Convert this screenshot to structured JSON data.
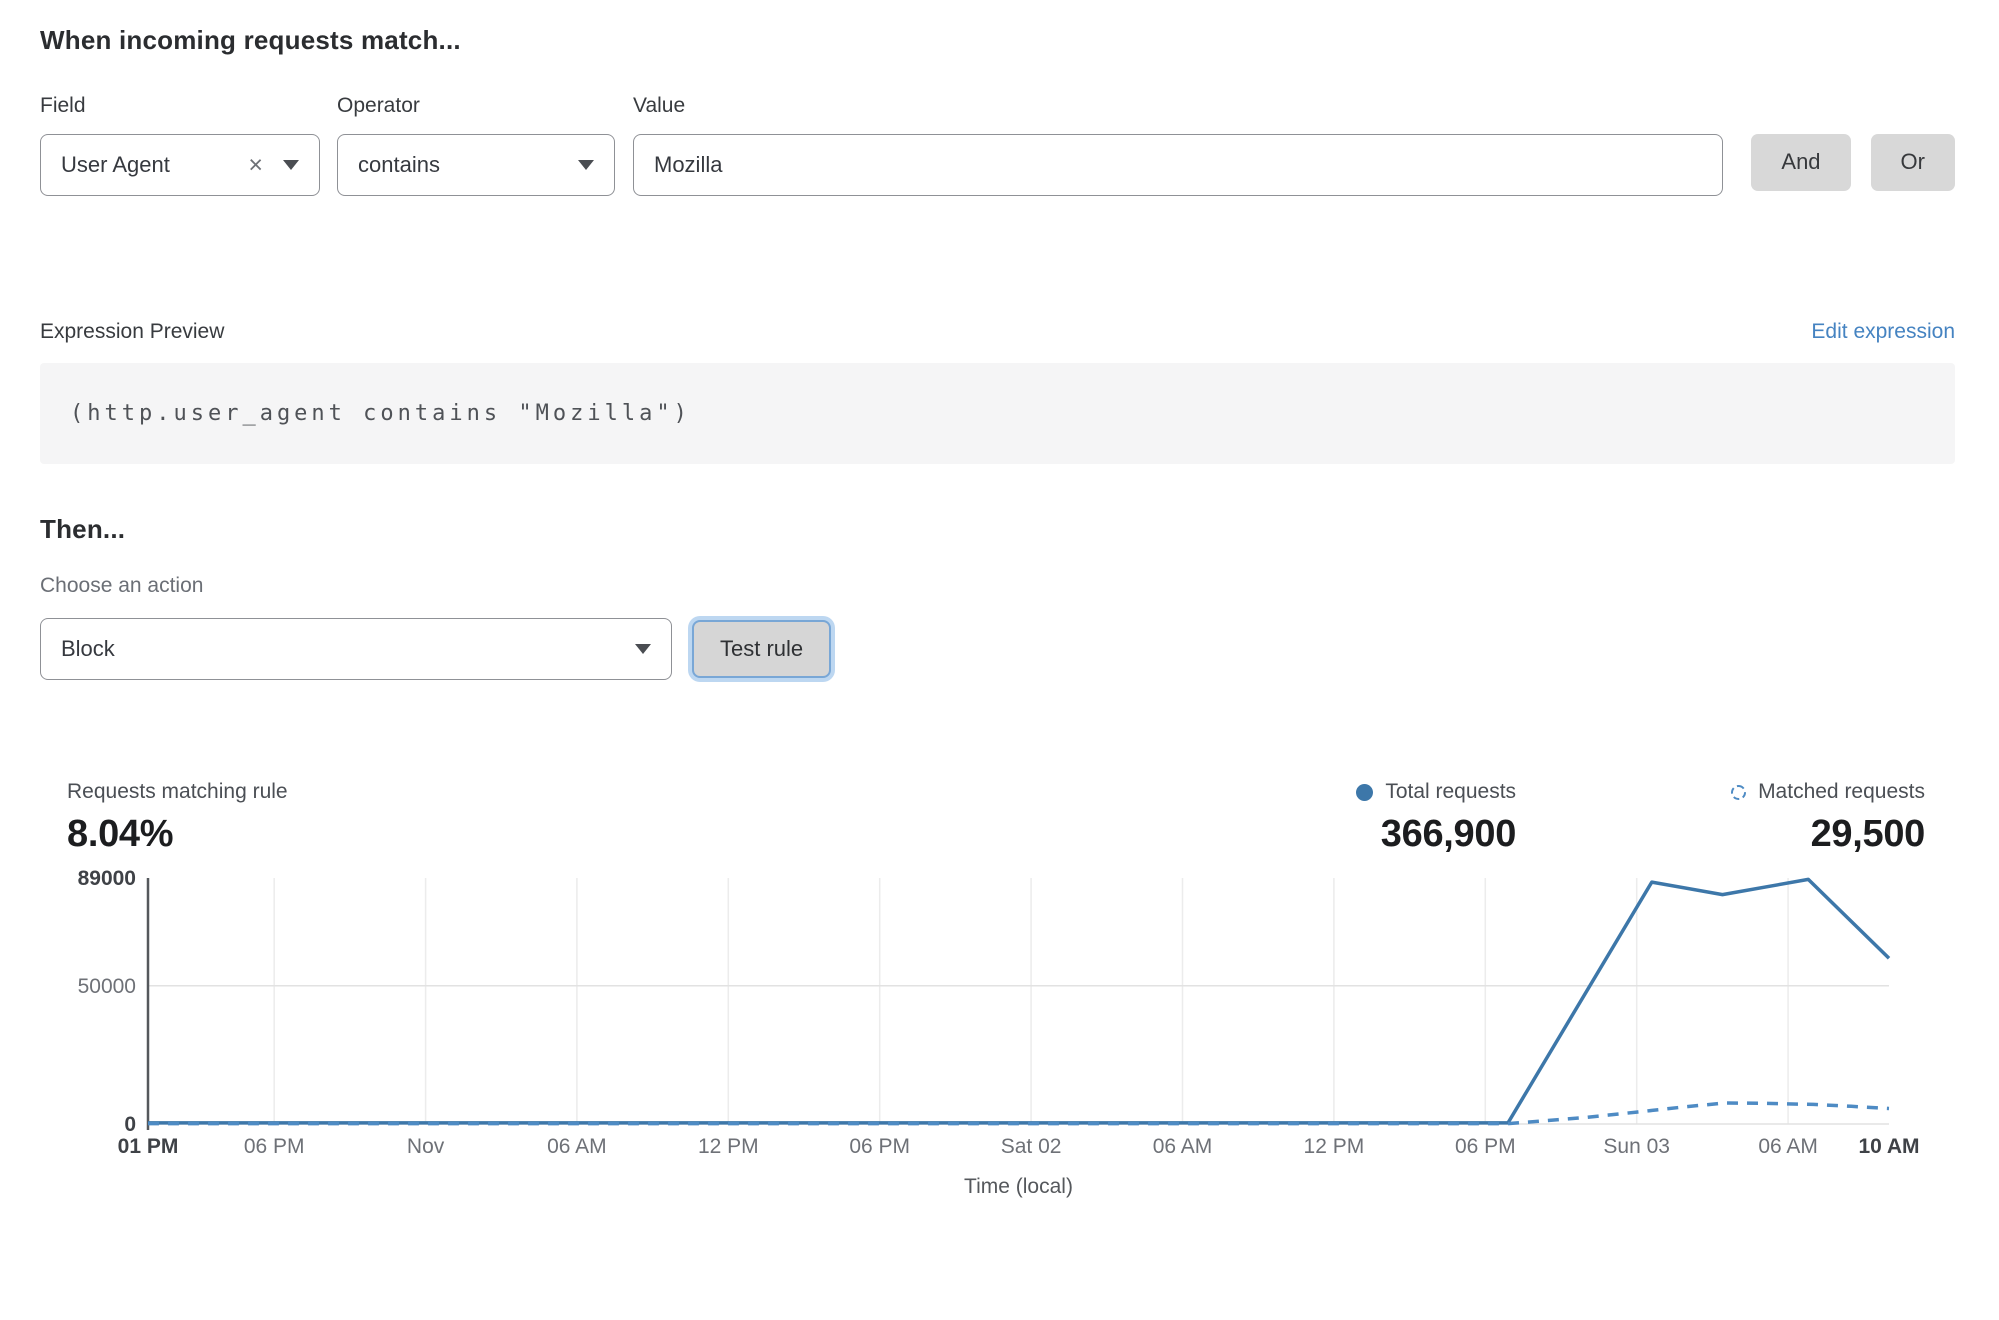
{
  "header": {
    "title": "When incoming requests match..."
  },
  "form": {
    "field_label": "Field",
    "field_value": "User Agent",
    "operator_label": "Operator",
    "operator_value": "contains",
    "value_label": "Value",
    "value_value": "Mozilla",
    "and_button": "And",
    "or_button": "Or"
  },
  "expression": {
    "label": "Expression Preview",
    "edit_link": "Edit expression",
    "code": "(http.user_agent contains \"Mozilla\")"
  },
  "action": {
    "title": "Then...",
    "choose_label": "Choose an action",
    "selected_action": "Block",
    "test_button": "Test rule"
  },
  "stats": {
    "matching_label": "Requests matching rule",
    "matching_value": "8.04%",
    "total_label": "Total requests",
    "total_value": "366,900",
    "matched_label": "Matched requests",
    "matched_value": "29,500"
  },
  "colors": {
    "solid_line": "#3d77a9",
    "dashed_line": "#4e8bc4",
    "link_blue": "#4583c1",
    "grid": "#ececec",
    "grid_major": "#e2e2e2",
    "axis": "#55585c",
    "tick_text": "#6e7177",
    "tick_text_bold": "#3f4247"
  },
  "chart_data": {
    "type": "line",
    "title": "",
    "xlabel": "Time (local)",
    "ylabel": "",
    "ylim": [
      0,
      89000
    ],
    "x_total_hours": 69,
    "legend_position": "above-right",
    "grid": {
      "vertical_at_ticks": true,
      "horizontal_gridlines": [
        50000
      ],
      "baseline": true
    },
    "y_ticks": [
      {
        "value": 0,
        "label": "0",
        "bold": true
      },
      {
        "value": 50000,
        "label": "50000",
        "bold": false
      },
      {
        "value": 89000,
        "label": "89000",
        "bold": true
      }
    ],
    "x_ticks": [
      {
        "hour": 0,
        "label": "01 PM",
        "bold": true
      },
      {
        "hour": 5,
        "label": "06 PM",
        "bold": false
      },
      {
        "hour": 11,
        "label": "Nov",
        "bold": false
      },
      {
        "hour": 17,
        "label": "06 AM",
        "bold": false
      },
      {
        "hour": 23,
        "label": "12 PM",
        "bold": false
      },
      {
        "hour": 29,
        "label": "06 PM",
        "bold": false
      },
      {
        "hour": 35,
        "label": "Sat 02",
        "bold": false
      },
      {
        "hour": 41,
        "label": "06 AM",
        "bold": false
      },
      {
        "hour": 47,
        "label": "12 PM",
        "bold": false
      },
      {
        "hour": 53,
        "label": "06 PM",
        "bold": false
      },
      {
        "hour": 59,
        "label": "Sun 03",
        "bold": false
      },
      {
        "hour": 65,
        "label": "06 AM",
        "bold": false
      },
      {
        "hour": 69,
        "label": "10 AM",
        "bold": true
      }
    ],
    "series": [
      {
        "name": "Total requests",
        "style": "solid",
        "color": "#3d77a9",
        "points": [
          [
            0,
            400
          ],
          [
            10,
            400
          ],
          [
            20,
            400
          ],
          [
            30,
            400
          ],
          [
            40,
            400
          ],
          [
            50,
            400
          ],
          [
            53.9,
            400
          ],
          [
            59.6,
            87500
          ],
          [
            62.4,
            83000
          ],
          [
            65.8,
            88500
          ],
          [
            69,
            60000
          ]
        ]
      },
      {
        "name": "Matched requests",
        "style": "dashed",
        "color": "#4e8bc4",
        "points": [
          [
            0,
            150
          ],
          [
            10,
            150
          ],
          [
            20,
            150
          ],
          [
            30,
            150
          ],
          [
            40,
            150
          ],
          [
            50,
            150
          ],
          [
            53.9,
            150
          ],
          [
            55,
            900
          ],
          [
            57,
            2400
          ],
          [
            59,
            4300
          ],
          [
            61,
            6300
          ],
          [
            62.5,
            7600
          ],
          [
            64,
            7500
          ],
          [
            66,
            7100
          ],
          [
            67.5,
            6400
          ],
          [
            69,
            5600
          ]
        ]
      }
    ]
  }
}
